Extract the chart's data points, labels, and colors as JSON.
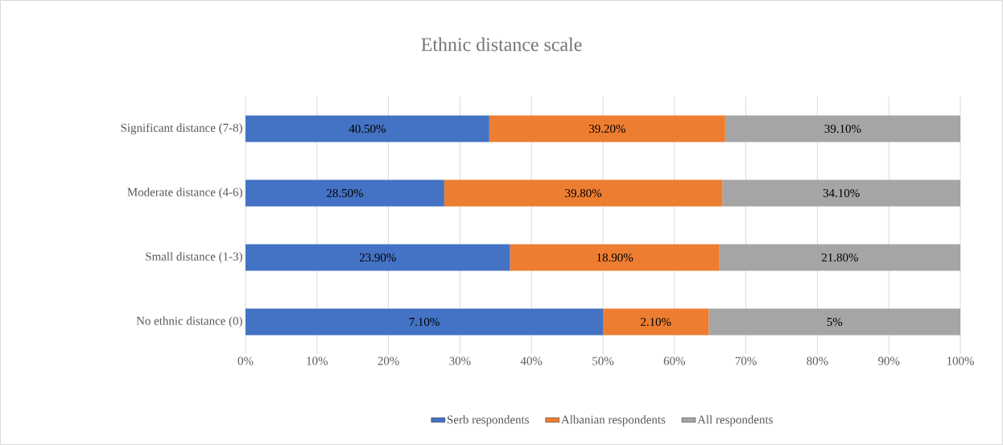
{
  "chart_data": {
    "type": "bar",
    "orientation": "horizontal",
    "stacked": true,
    "title": "Ethnic distance scale",
    "categories": [
      "Significant distance (7-8)",
      "Moderate distance (4-6)",
      "Small distance (1-3)",
      "No ethnic distance (0)"
    ],
    "series": [
      {
        "name": "Serb respondents",
        "color": "#4472c4",
        "values": [
          34.1,
          27.8,
          37.0,
          50.0
        ]
      },
      {
        "name": "Albanian respondents",
        "color": "#ed7d31",
        "values": [
          33.0,
          38.9,
          29.3,
          14.8
        ]
      },
      {
        "name": "All respondents",
        "color": "#a5a5a5",
        "values": [
          32.9,
          33.3,
          33.7,
          35.2
        ]
      }
    ],
    "annotations": [
      "40.50%",
      "28.50%",
      "23.90%",
      "7.10%",
      "39.20%",
      "39.80%",
      "18.90%",
      "2.10%",
      "39.10%",
      "34.10%",
      "21.80%",
      "5%"
    ],
    "xlim": [
      0,
      100
    ],
    "xticks": [
      {
        "value": 0,
        "label": "0%"
      },
      {
        "value": 10,
        "label": "10%"
      },
      {
        "value": 20,
        "label": "20%"
      },
      {
        "value": 30,
        "label": "30%"
      },
      {
        "value": 40,
        "label": "40%"
      },
      {
        "value": 50,
        "label": "50%"
      },
      {
        "value": 60,
        "label": "60%"
      },
      {
        "value": 70,
        "label": "70%"
      },
      {
        "value": 80,
        "label": "80%"
      },
      {
        "value": 90,
        "label": "90%"
      },
      {
        "value": 100,
        "label": "100%"
      }
    ],
    "grid": "x",
    "legend": "bottom"
  }
}
